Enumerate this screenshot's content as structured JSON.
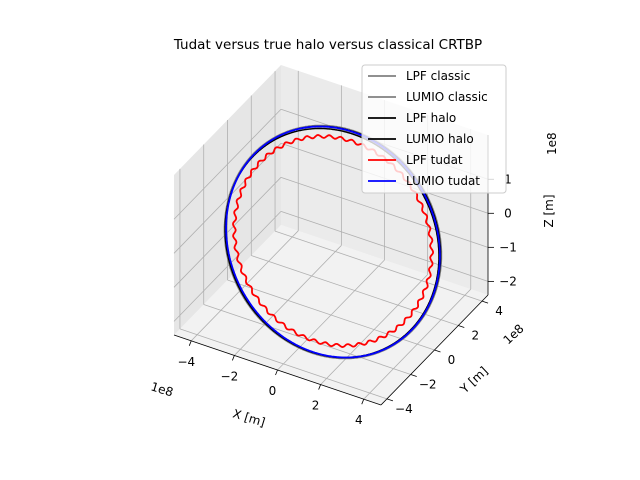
{
  "chart_data": {
    "type": "line",
    "projection": "3d",
    "title": "Tudat versus true halo versus classical CRTBP",
    "xlabel": "X [m]",
    "ylabel": "Y [m]",
    "zlabel": "Z [m]",
    "xlim": [
      -480000000.0,
      480000000.0
    ],
    "ylim": [
      -450000000.0,
      450000000.0
    ],
    "zlim": [
      -240000000.0,
      230000000.0
    ],
    "x_ticks": [
      "−4",
      "−2",
      "0",
      "2",
      "4"
    ],
    "y_ticks": [
      "−4",
      "−2",
      "0",
      "2",
      "4"
    ],
    "z_ticks": [
      "−2",
      "−1",
      "0",
      "1"
    ],
    "x_ticks_values": [
      -400000000.0,
      -200000000.0,
      0,
      200000000.0,
      400000000.0
    ],
    "y_ticks_values": [
      -400000000.0,
      -200000000.0,
      0,
      200000000.0,
      400000000.0
    ],
    "z_ticks_values": [
      -200000000.0,
      -100000000.0,
      0,
      100000000.0
    ],
    "x_offset": "1e8",
    "y_offset": "1e8",
    "z_offset": "1e8",
    "grid": true,
    "legend_placement": "top-right",
    "series": [
      {
        "name": "LPF classic",
        "color": "#808080",
        "values": {
          "x": [
            0
          ],
          "y": [
            0
          ],
          "z": [
            0
          ]
        }
      },
      {
        "name": "LUMIO classic",
        "color": "#808080",
        "values": {
          "x": [
            0
          ],
          "y": [
            0
          ],
          "z": [
            0
          ]
        }
      },
      {
        "name": "LPF halo",
        "color": "#000000",
        "values": {
          "x": [
            0
          ],
          "y": [
            0
          ],
          "z": [
            0
          ]
        }
      },
      {
        "name": "LUMIO halo",
        "color": "#000000",
        "values": {
          "x": [
            0
          ],
          "y": [
            0
          ],
          "z": [
            0
          ]
        }
      },
      {
        "name": "LPF tudat",
        "color": "#ff0000",
        "values": {
          "x": [
            0
          ],
          "y": [
            0
          ],
          "z": [
            0
          ]
        }
      },
      {
        "name": "LUMIO tudat",
        "color": "#0000ff",
        "values": {
          "x": [
            0
          ],
          "y": [
            0
          ],
          "z": [
            0
          ]
        }
      }
    ]
  }
}
